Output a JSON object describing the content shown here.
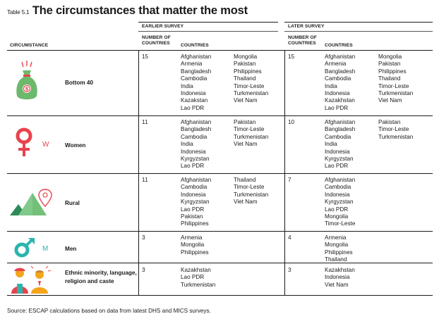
{
  "title": {
    "prefix": "Table 5.1",
    "text": "The circumstances that matter the most"
  },
  "headers": {
    "circumstance": "CIRCUMSTANCE",
    "earlier": "EARLIER SURVEY",
    "later": "LATER SURVEY",
    "num_countries_line1": "NUMBER OF",
    "num_countries_line2": "COUNTRIES",
    "countries": "COUNTRIES"
  },
  "rows": [
    {
      "circumstance": "Bottom 40",
      "icon": "money-bag-icon",
      "earlier_count": "15",
      "earlier_col1": [
        "Afghanistan",
        "Armenia",
        "Bangladesh",
        "Cambodia",
        "India",
        "Indonesia",
        "Kazakstan",
        "Lao PDR"
      ],
      "earlier_col2": [
        "Mongolia",
        "Pakistan",
        "Philippines",
        "Thailand",
        "Timor-Leste",
        "Turkmenistan",
        "Viet Nam"
      ],
      "later_count": "15",
      "later_col1": [
        "Afghanistan",
        "Armenia",
        "Bangladesh",
        "Cambodia",
        "India",
        "Indonesia",
        "Kazakhstan",
        "Lao PDR"
      ],
      "later_col2": [
        "Mongolia",
        "Pakistan",
        "Philippines",
        "Thailand",
        "Timor-Leste",
        "Turkmenistan",
        "Viet Nam"
      ]
    },
    {
      "circumstance": "Women",
      "icon": "female-symbol-icon",
      "icon_letter": "W",
      "earlier_count": "11",
      "earlier_col1": [
        "Afghanistan",
        "Bangladesh",
        "Cambodia",
        "India",
        "Indonesia",
        "Kyrgyzstan",
        "Lao PDR"
      ],
      "earlier_col2": [
        "Pakistan",
        "Timor-Leste",
        "Turkmenistan",
        "Viet Nam"
      ],
      "later_count": "10",
      "later_col1": [
        "Afghanistan",
        "Bangladesh",
        "Cambodia",
        "India",
        "Indonesia",
        "Kyrgyzstan",
        "Lao PDR"
      ],
      "later_col2": [
        "Pakistan",
        "Timor-Leste",
        "Turkmenistan"
      ]
    },
    {
      "circumstance": "Rural",
      "icon": "mountains-pin-icon",
      "earlier_count": "11",
      "earlier_col1": [
        "Afghanistan",
        "Cambodia",
        "Indonesia",
        "Kyrgyzstan",
        "Lao PDR",
        "Pakistan",
        "Philippines"
      ],
      "earlier_col2": [
        "Thailand",
        "Timor-Leste",
        "Turkmenistan",
        "Viet Nam"
      ],
      "later_count": "7",
      "later_col1": [
        "Afghanistan",
        "Cambodia",
        "Indonesia",
        "Kyrgyzstan",
        "Lao PDR",
        "Mongolia",
        "Timor-Leste"
      ],
      "later_col2": []
    },
    {
      "circumstance": "Men",
      "icon": "male-symbol-icon",
      "icon_letter": "M",
      "earlier_count": "3",
      "earlier_col1": [
        "Armenia",
        "Mongolia",
        "Philippines"
      ],
      "earlier_col2": [],
      "later_count": "4",
      "later_col1": [
        "Armenia",
        "Mongolia",
        "Philippines",
        "Thailand"
      ],
      "later_col2": []
    },
    {
      "circumstance": "Ethnic minority, language, religion and caste",
      "icon": "people-praying-icon",
      "earlier_count": "3",
      "earlier_col1": [
        "Kazakhstan",
        "Lao PDR",
        "Turkmenistan"
      ],
      "earlier_col2": [],
      "later_count": "3",
      "later_col1": [
        "Kazakhstan",
        "Indonesia",
        "Viet Nam"
      ],
      "later_col2": []
    }
  ],
  "source": "Source: ESCAP calculations based on data from latest DHS and MICS surveys.",
  "colors": {
    "red": "#e8434d",
    "teal": "#2ab5ad",
    "green": "#6cb96b",
    "dark_green": "#2e8b57",
    "orange": "#f4a51c",
    "text": "#1a1a1a"
  }
}
